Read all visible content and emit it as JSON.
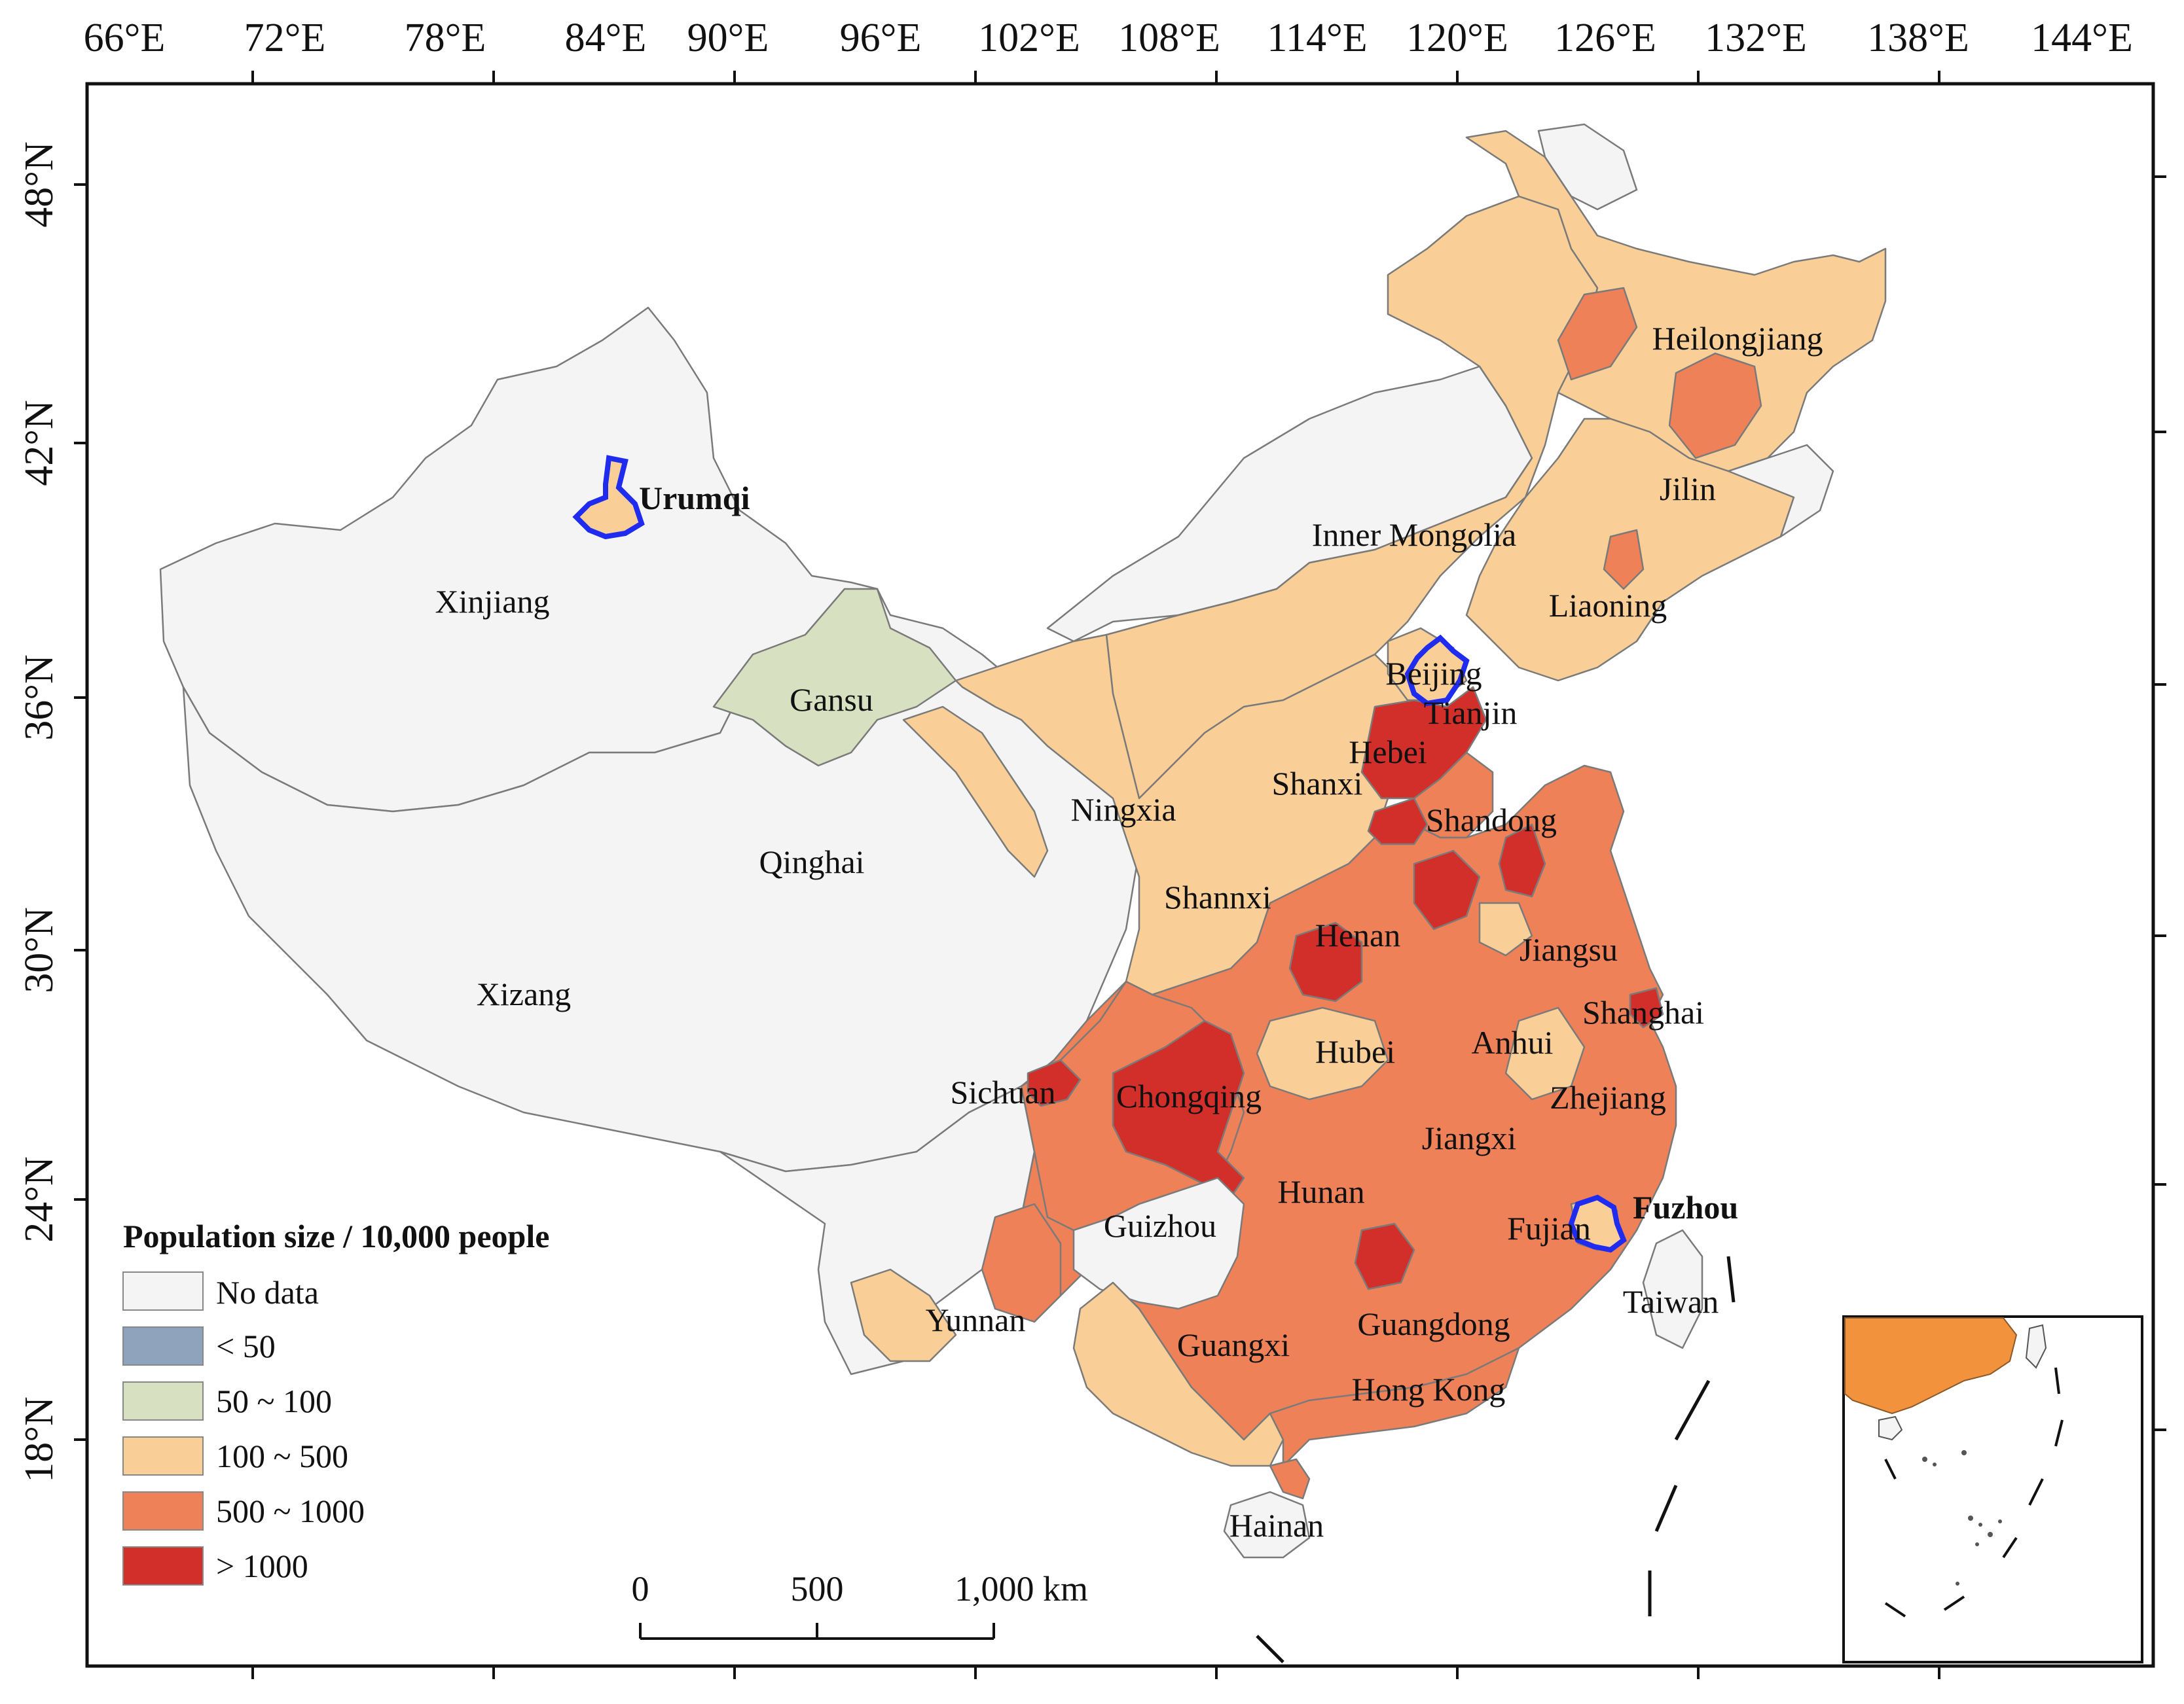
{
  "axes": {
    "lon_ticks": [
      "66°E",
      "72°E",
      "78°E",
      "84°E",
      "90°E",
      "96°E",
      "102°E",
      "108°E",
      "114°E",
      "120°E",
      "126°E",
      "132°E",
      "138°E",
      "144°E"
    ],
    "lat_ticks": [
      "48°N",
      "42°N",
      "36°N",
      "30°N",
      "24°N",
      "18°N"
    ]
  },
  "legend": {
    "title": "Population size / 10,000 people",
    "items": [
      {
        "label": "No data",
        "color": "#f4f4f4"
      },
      {
        "label": "< 50",
        "color": "#8fa3bd"
      },
      {
        "label": "50 ~ 100",
        "color": "#d7e0c0"
      },
      {
        "label": "100 ~ 500",
        "color": "#f9cf97"
      },
      {
        "label": "500 ~ 1000",
        "color": "#ee8158"
      },
      {
        "label": "> 1000",
        "color": "#d32f2a"
      }
    ]
  },
  "cities": {
    "urumqi": "Urumqi",
    "fuzhou": "Fuzhou"
  },
  "provinces": {
    "xinjiang": "Xinjiang",
    "gansu": "Gansu",
    "qinghai": "Qinghai",
    "xizang": "Xizang",
    "ningxia": "Ningxia",
    "inner_mongolia": "Inner Mongolia",
    "heilongjiang": "Heilongjiang",
    "jilin": "Jilin",
    "liaoning": "Liaoning",
    "beijing": "Beijing",
    "tianjin": "Tianjin",
    "hebei": "Hebei",
    "shanxi": "Shanxi",
    "shandong": "Shandong",
    "shannxi": "Shannxi",
    "henan": "Henan",
    "jiangsu": "Jiangsu",
    "shanghai": "Shanghai",
    "anhui": "Anhui",
    "hubei": "Hubei",
    "sichuan": "Sichuan",
    "chongqing": "Chongqing",
    "zhejiang": "Zhejiang",
    "jiangxi": "Jiangxi",
    "hunan": "Hunan",
    "guizhou": "Guizhou",
    "fujian": "Fujian",
    "taiwan": "Taiwan",
    "yunnan": "Yunnan",
    "guangxi": "Guangxi",
    "guangdong": "Guangdong",
    "hong_kong": "Hong Kong",
    "hainan": "Hainan"
  },
  "scale_bar": {
    "labels": [
      "0",
      "500",
      "1,000 km"
    ]
  },
  "colors": {
    "frame": "#111111",
    "highlight_outline": "#1f2cf0",
    "boundary": "#7a7a7a",
    "inset_fill": "#f3923c"
  }
}
